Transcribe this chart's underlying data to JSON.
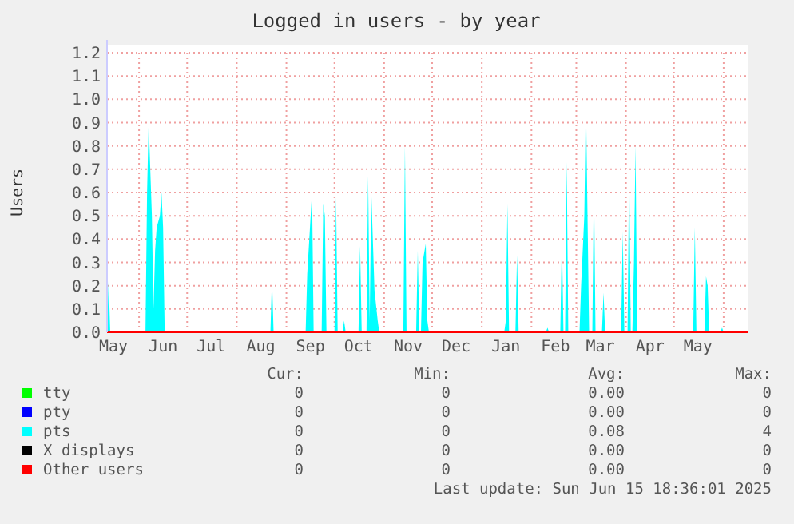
{
  "chart_data": {
    "type": "area",
    "title": "Logged in users - by year",
    "ylabel": "Users",
    "xlim": [
      "2024-05-12",
      "2025-06-16"
    ],
    "xticks": [
      {
        "value": "2024-05-16",
        "label": "May"
      },
      {
        "value": "2024-06-01",
        "label": null
      },
      {
        "value": "2024-06-16",
        "label": "Jun"
      },
      {
        "value": "2024-07-01",
        "label": null
      },
      {
        "value": "2024-07-16",
        "label": "Jul"
      },
      {
        "value": "2024-08-01",
        "label": null
      },
      {
        "value": "2024-08-16",
        "label": "Aug"
      },
      {
        "value": "2024-09-01",
        "label": null
      },
      {
        "value": "2024-09-16",
        "label": "Sep"
      },
      {
        "value": "2024-10-01",
        "label": null
      },
      {
        "value": "2024-10-16",
        "label": "Oct"
      },
      {
        "value": "2024-11-01",
        "label": null
      },
      {
        "value": "2024-11-16",
        "label": "Nov"
      },
      {
        "value": "2024-12-01",
        "label": null
      },
      {
        "value": "2024-12-16",
        "label": "Dec"
      },
      {
        "value": "2025-01-01",
        "label": null
      },
      {
        "value": "2025-01-16",
        "label": "Jan"
      },
      {
        "value": "2025-02-01",
        "label": null
      },
      {
        "value": "2025-02-16",
        "label": "Feb"
      },
      {
        "value": "2025-03-01",
        "label": null
      },
      {
        "value": "2025-03-16",
        "label": "Mar"
      },
      {
        "value": "2025-04-01",
        "label": null
      },
      {
        "value": "2025-04-16",
        "label": "Apr"
      },
      {
        "value": "2025-05-01",
        "label": null
      },
      {
        "value": "2025-05-16",
        "label": "May"
      },
      {
        "value": "2025-06-01",
        "label": null
      }
    ],
    "ylim": [
      0,
      1.2
    ],
    "yticks": [
      {
        "value": 0,
        "label": "0.0"
      },
      {
        "value": 0.1,
        "label": "0.1"
      },
      {
        "value": 0.2,
        "label": "0.2"
      },
      {
        "value": 0.3,
        "label": "0.3"
      },
      {
        "value": 0.4,
        "label": "0.4"
      },
      {
        "value": 0.5,
        "label": "0.5"
      },
      {
        "value": 0.6,
        "label": "0.6"
      },
      {
        "value": 0.7,
        "label": "0.7"
      },
      {
        "value": 0.8,
        "label": "0.8"
      },
      {
        "value": 0.9,
        "label": "0.9"
      },
      {
        "value": 1,
        "label": "1.0"
      },
      {
        "value": 1.1,
        "label": "1.1"
      },
      {
        "value": 1.2,
        "label": "1.2"
      }
    ],
    "grid": true,
    "legend": "bottom",
    "series": [
      {
        "name": "tty",
        "color": "#00ff00"
      },
      {
        "name": "pty",
        "color": "#0000ff"
      },
      {
        "name": "pts",
        "color": "#00ffff",
        "x": [
          "2024-05-12",
          "2024-05-13",
          "2024-05-14",
          "2024-06-05",
          "2024-06-06",
          "2024-06-07",
          "2024-06-09",
          "2024-06-10",
          "2024-06-11",
          "2024-06-12",
          "2024-06-14",
          "2024-06-15",
          "2024-06-16",
          "2024-06-17",
          "2024-08-22",
          "2024-08-23",
          "2024-08-24",
          "2024-09-13",
          "2024-09-14",
          "2024-09-17",
          "2024-09-18",
          "2024-09-23",
          "2024-09-24",
          "2024-09-25",
          "2024-09-26",
          "2024-10-01",
          "2024-10-02",
          "2024-10-03",
          "2024-10-06",
          "2024-10-07",
          "2024-10-08",
          "2024-10-16",
          "2024-10-17",
          "2024-10-18",
          "2024-10-21",
          "2024-10-22",
          "2024-10-23",
          "2024-10-24",
          "2024-10-26",
          "2024-10-28",
          "2024-10-29",
          "2024-11-13",
          "2024-11-14",
          "2024-11-15",
          "2024-11-21",
          "2024-11-22",
          "2024-11-23",
          "2024-11-24",
          "2024-11-25",
          "2024-11-27",
          "2024-11-28",
          "2024-11-29",
          "2025-01-15",
          "2025-01-16",
          "2025-01-17",
          "2025-01-18",
          "2025-01-22",
          "2025-01-23",
          "2025-01-24",
          "2025-02-10",
          "2025-02-11",
          "2025-02-12",
          "2025-02-19",
          "2025-02-20",
          "2025-02-21",
          "2025-02-22",
          "2025-02-23",
          "2025-02-24",
          "2025-03-03",
          "2025-03-04",
          "2025-03-06",
          "2025-03-07",
          "2025-03-08",
          "2025-03-09",
          "2025-03-11",
          "2025-03-12",
          "2025-03-13",
          "2025-03-17",
          "2025-03-18",
          "2025-03-19",
          "2025-03-29",
          "2025-03-30",
          "2025-03-31",
          "2025-04-02",
          "2025-04-03",
          "2025-04-04",
          "2025-04-05",
          "2025-04-06",
          "2025-04-07",
          "2025-04-08",
          "2025-05-13",
          "2025-05-14",
          "2025-05-15",
          "2025-05-20",
          "2025-05-21",
          "2025-05-22",
          "2025-05-23",
          "2025-05-30",
          "2025-05-31",
          "2025-06-01"
        ],
        "values": [
          0,
          0.22,
          0,
          0,
          0.6,
          0.9,
          0.5,
          0.1,
          0.35,
          0.45,
          0.5,
          0.6,
          0.45,
          0,
          0,
          0.23,
          0,
          0,
          0.25,
          0.6,
          0,
          0,
          0.55,
          0.5,
          0,
          0,
          0.58,
          0,
          0,
          0.05,
          0,
          0,
          0.37,
          0,
          0,
          0.67,
          0.05,
          0.6,
          0.18,
          0.05,
          0,
          0,
          0.8,
          0,
          0,
          0.35,
          0,
          0,
          0.3,
          0.38,
          0.05,
          0,
          0,
          0.05,
          0.55,
          0,
          0,
          0.33,
          0,
          0,
          0.02,
          0,
          0,
          0.4,
          0,
          0,
          0.73,
          0,
          0,
          0.2,
          0.5,
          1,
          0.5,
          0,
          0,
          0.65,
          0,
          0,
          0.17,
          0,
          0,
          0.43,
          0,
          0,
          0.73,
          0,
          0,
          0.3,
          0.8,
          0,
          0,
          0.45,
          0,
          0,
          0.24,
          0.2,
          0,
          0,
          0.02,
          0
        ]
      },
      {
        "name": "X displays",
        "color": "#000000"
      },
      {
        "name": "Other users",
        "color": "#ff0000",
        "type": "line",
        "x": [
          "2024-05-12",
          "2025-06-16"
        ],
        "values": [
          0,
          0
        ]
      }
    ],
    "annotations": [
      "Cur:",
      "Min:",
      "Avg:",
      "Max:",
      "0",
      "0",
      "0.00",
      "0",
      "0",
      "0",
      "0.00",
      "0",
      "0",
      "0",
      "0.08",
      "4",
      "0",
      "0",
      "0.00",
      "0",
      "0",
      "0",
      "0.00",
      "0",
      "Last update: Sun Jun 15 18:36:01 2025"
    ]
  }
}
